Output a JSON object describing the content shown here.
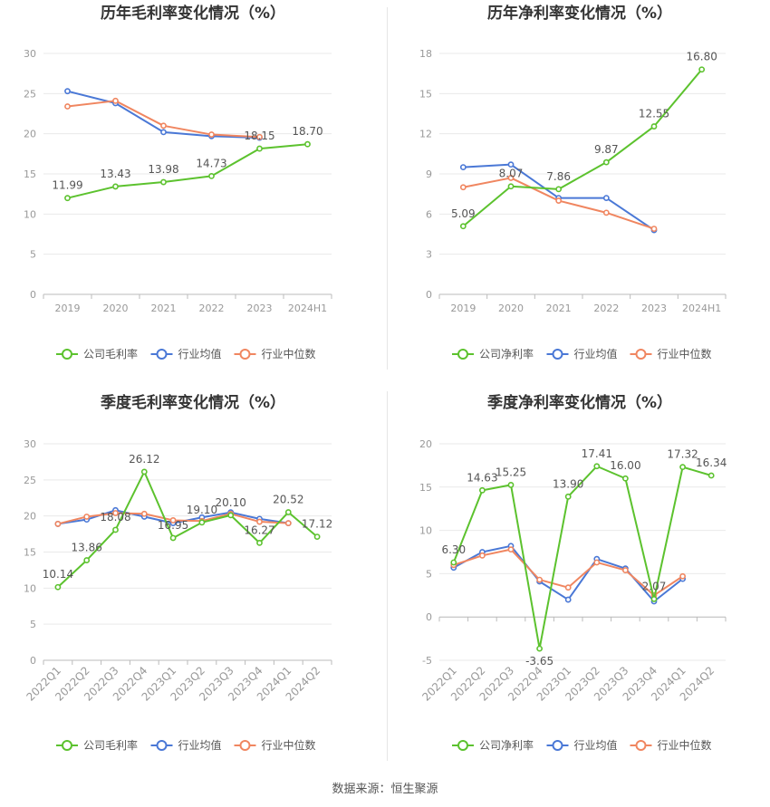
{
  "colors": {
    "company": "#5cc22e",
    "avg": "#4a78d6",
    "median": "#f08660",
    "grid": "#e9e9e9",
    "axis": "#999999",
    "tick": "#999999",
    "label": "#555555",
    "title": "#333333"
  },
  "source_note": "数据来源：恒生聚源",
  "chart_data": [
    {
      "type": "line",
      "title": "历年毛利率变化情况（%）",
      "categories": [
        "2019",
        "2020",
        "2021",
        "2022",
        "2023",
        "2024H1"
      ],
      "ylim": [
        0,
        30
      ],
      "yticks": [
        0,
        5,
        10,
        15,
        20,
        25,
        30
      ],
      "ytick_labels": [
        "0",
        "5",
        "10",
        "15",
        "20",
        "25",
        "30"
      ],
      "series": [
        {
          "name": "公司毛利率",
          "key": "company",
          "values": [
            11.99,
            13.43,
            13.98,
            14.73,
            18.15,
            18.7
          ],
          "labels": [
            "11.99",
            "13.43",
            "13.98",
            "14.73",
            "18.15",
            "18.70"
          ]
        },
        {
          "name": "行业均值",
          "key": "avg",
          "values": [
            25.3,
            23.8,
            20.2,
            19.7,
            19.5,
            null
          ]
        },
        {
          "name": "行业中位数",
          "key": "median",
          "values": [
            23.4,
            24.1,
            21.0,
            19.9,
            19.6,
            null
          ]
        }
      ]
    },
    {
      "type": "line",
      "title": "历年净利率变化情况（%）",
      "categories": [
        "2019",
        "2020",
        "2021",
        "2022",
        "2023",
        "2024H1"
      ],
      "ylim": [
        0,
        18
      ],
      "yticks": [
        0,
        3,
        6,
        9,
        12,
        15,
        18
      ],
      "ytick_labels": [
        "0",
        "3",
        "6",
        "9",
        "12",
        "15",
        "18"
      ],
      "series": [
        {
          "name": "公司净利率",
          "key": "company",
          "values": [
            5.09,
            8.07,
            7.86,
            9.87,
            12.55,
            16.8
          ],
          "labels": [
            "5.09",
            "8.07",
            "7.86",
            "9.87",
            "12.55",
            "16.80"
          ]
        },
        {
          "name": "行业均值",
          "key": "avg",
          "values": [
            9.5,
            9.7,
            7.2,
            7.2,
            4.8,
            null
          ]
        },
        {
          "name": "行业中位数",
          "key": "median",
          "values": [
            8.0,
            8.7,
            7.0,
            6.1,
            4.9,
            null
          ]
        }
      ]
    },
    {
      "type": "line",
      "title": "季度毛利率变化情况（%）",
      "categories": [
        "2022Q1",
        "2022Q2",
        "2022Q3",
        "2022Q4",
        "2023Q1",
        "2023Q2",
        "2023Q3",
        "2023Q4",
        "2024Q1",
        "2024Q2"
      ],
      "ylim": [
        0,
        30
      ],
      "yticks": [
        0,
        5,
        10,
        15,
        20,
        25,
        30
      ],
      "ytick_labels": [
        "0",
        "5",
        "10",
        "15",
        "20",
        "25",
        "30"
      ],
      "series": [
        {
          "name": "公司毛利率",
          "key": "company",
          "values": [
            10.14,
            13.86,
            18.08,
            26.12,
            16.95,
            19.1,
            20.1,
            16.27,
            20.52,
            17.12
          ],
          "labels": [
            "10.14",
            "13.86",
            "18.08",
            "26.12",
            "16.95",
            "19.10",
            "20.10",
            "16.27",
            "20.52",
            "17.12"
          ]
        },
        {
          "name": "行业均值",
          "key": "avg",
          "values": [
            18.9,
            19.5,
            20.8,
            19.9,
            19.0,
            19.8,
            20.5,
            19.6,
            19.0,
            null
          ]
        },
        {
          "name": "行业中位数",
          "key": "median",
          "values": [
            18.9,
            19.9,
            20.4,
            20.3,
            19.4,
            19.3,
            20.3,
            19.2,
            19.0,
            null
          ]
        }
      ]
    },
    {
      "type": "line",
      "title": "季度净利率变化情况（%）",
      "categories": [
        "2022Q1",
        "2022Q2",
        "2022Q3",
        "2022Q4",
        "2023Q1",
        "2023Q2",
        "2023Q3",
        "2023Q4",
        "2024Q1",
        "2024Q2"
      ],
      "ylim": [
        -5,
        20
      ],
      "yticks": [
        -5,
        0,
        5,
        10,
        15,
        20
      ],
      "ytick_labels": [
        "-5",
        "0",
        "5",
        "10",
        "15",
        "20"
      ],
      "series": [
        {
          "name": "公司净利率",
          "key": "company",
          "values": [
            6.3,
            14.63,
            15.25,
            -3.65,
            13.9,
            17.41,
            16.0,
            2.07,
            17.32,
            16.34
          ],
          "labels": [
            "6.30",
            "14.63",
            "15.25",
            "-3.65",
            "13.90",
            "17.41",
            "16.00",
            "2.07",
            "17.32",
            "16.34"
          ]
        },
        {
          "name": "行业均值",
          "key": "avg",
          "values": [
            5.7,
            7.5,
            8.2,
            4.1,
            2.0,
            6.7,
            5.6,
            1.8,
            4.4,
            null
          ]
        },
        {
          "name": "行业中位数",
          "key": "median",
          "values": [
            6.0,
            7.1,
            7.8,
            4.3,
            3.4,
            6.3,
            5.4,
            2.5,
            4.7,
            null
          ]
        }
      ]
    }
  ]
}
